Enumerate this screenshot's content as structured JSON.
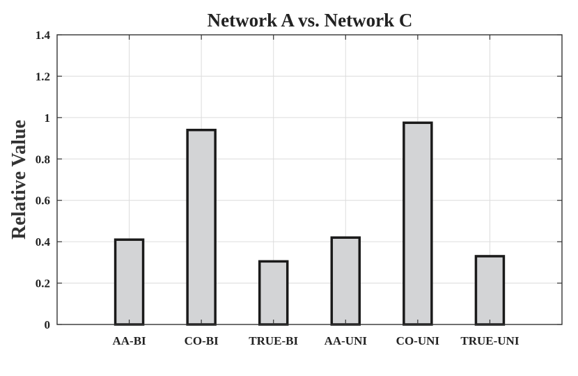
{
  "chart_data": {
    "type": "bar",
    "title": "Network A vs. Network C",
    "xlabel": "",
    "ylabel": "Relative Value",
    "categories": [
      "AA-BI",
      "CO-BI",
      "TRUE-BI",
      "AA-UNI",
      "CO-UNI",
      "TRUE-UNI"
    ],
    "values": [
      0.41,
      0.94,
      0.305,
      0.42,
      0.975,
      0.33
    ],
    "ylim": [
      0,
      1.4
    ],
    "yticks": [
      "0",
      "0.2",
      "0.4",
      "0.6",
      "0.8",
      "1",
      "1.2",
      "1.4"
    ],
    "grid": true,
    "legend": "none",
    "colors": {
      "bar_fill": "#d3d4d6",
      "bar_stroke": "#1a1a1a",
      "grid": "#dcdcdc",
      "axis": "#333333"
    }
  }
}
